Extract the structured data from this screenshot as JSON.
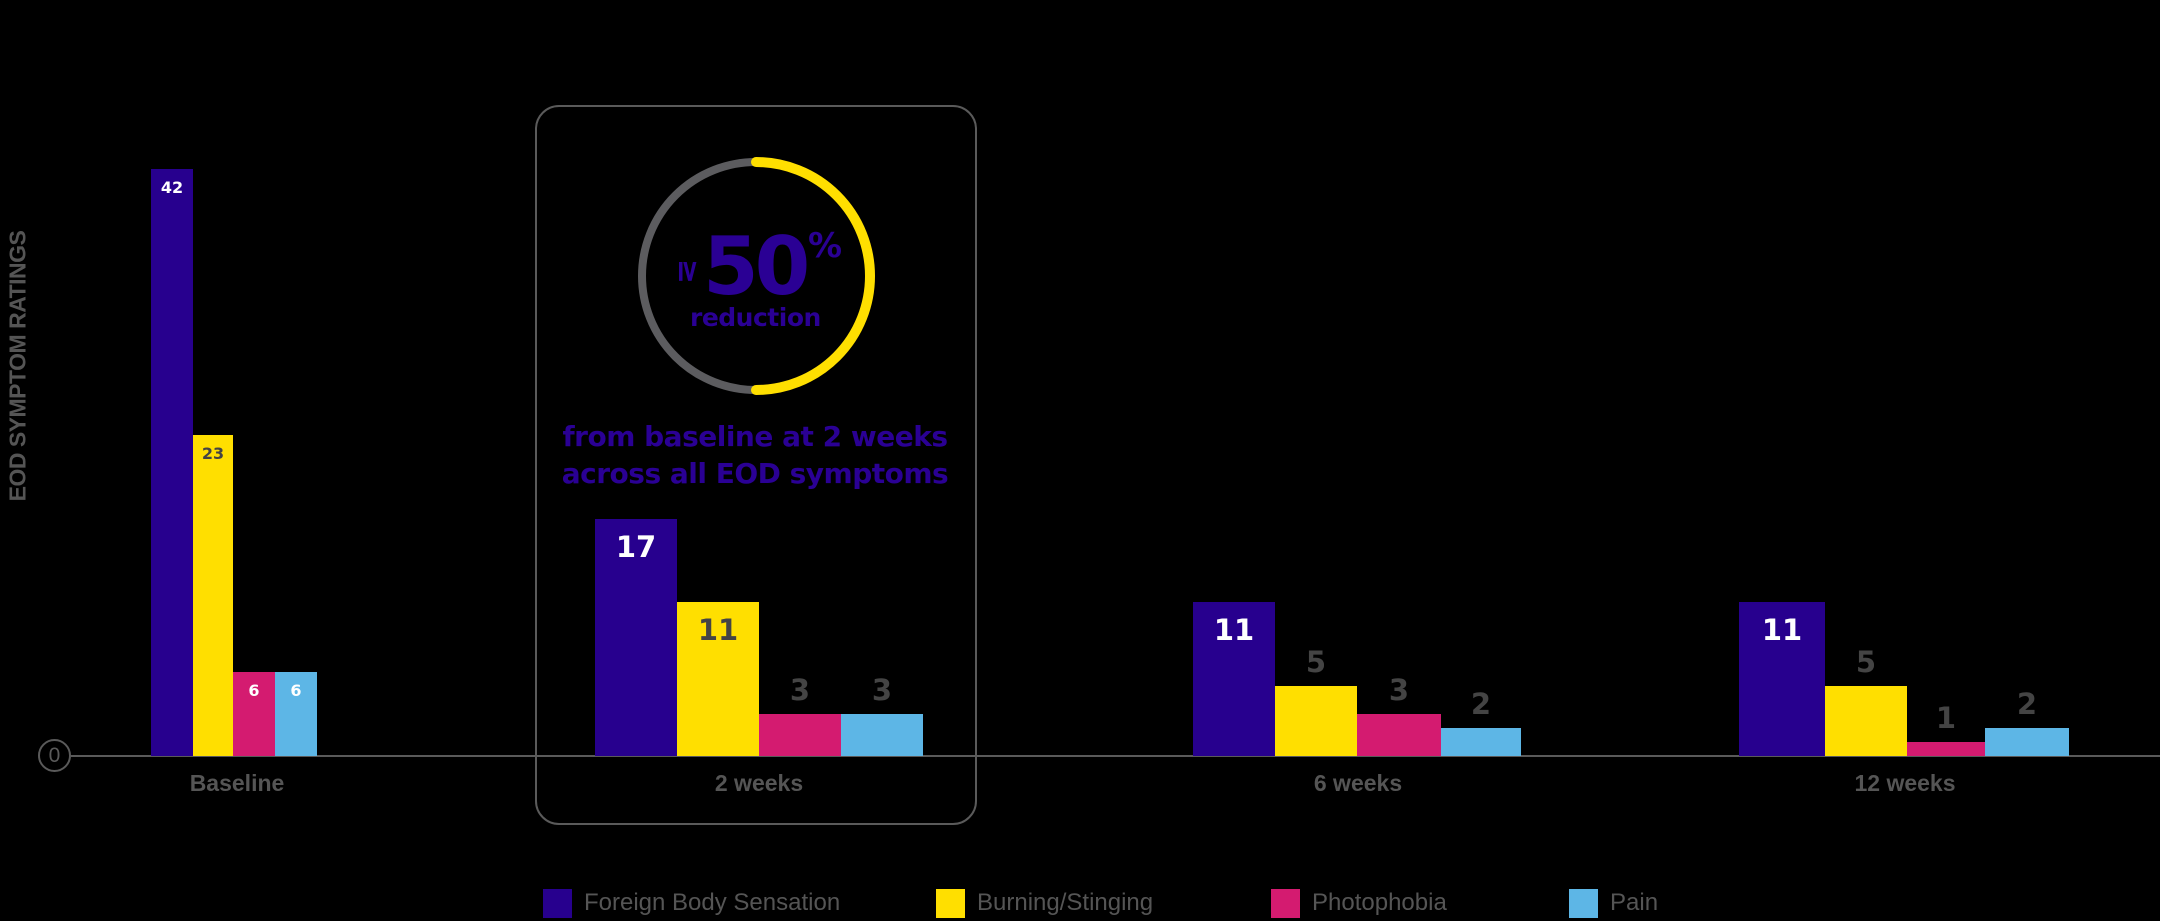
{
  "chart_data": {
    "type": "bar",
    "title": "",
    "xlabel": "",
    "ylabel": "EOD SYMPTOM RATINGS",
    "ylim": [
      0,
      42
    ],
    "grid": false,
    "legend_position": "bottom",
    "categories": [
      "Baseline",
      "2 weeks",
      "6 weeks",
      "12 weeks"
    ],
    "series": [
      {
        "name": "Foreign Body Sensation",
        "color": "#27008e",
        "values": [
          42,
          17,
          11,
          11
        ]
      },
      {
        "name": "Burning/Stinging",
        "color": "#ffdf00",
        "values": [
          23,
          11,
          5,
          5
        ]
      },
      {
        "name": "Photophobia",
        "color": "#d41b70",
        "values": [
          6,
          3,
          3,
          1
        ]
      },
      {
        "name": "Pain",
        "color": "#5db6e6",
        "values": [
          6,
          3,
          2,
          2
        ]
      }
    ],
    "y_axis_origin_label": "0",
    "annotations": [
      {
        "target_category": "2 weeks",
        "headline_prefix": "≥",
        "headline_value": "50",
        "headline_suffix": "%",
        "headline_sub": "reduction",
        "text_line1": "from baseline at 2 weeks",
        "text_line2": "across all EOD symptoms"
      }
    ]
  },
  "colors": {
    "background": "#000000",
    "axis": "#5a5a5a",
    "text_gray": "#555555",
    "label_dark": "#444444",
    "accent_purple": "#2a0094",
    "ring_gray": "#5c5c5f",
    "ring_yellow": "#ffdf00"
  }
}
